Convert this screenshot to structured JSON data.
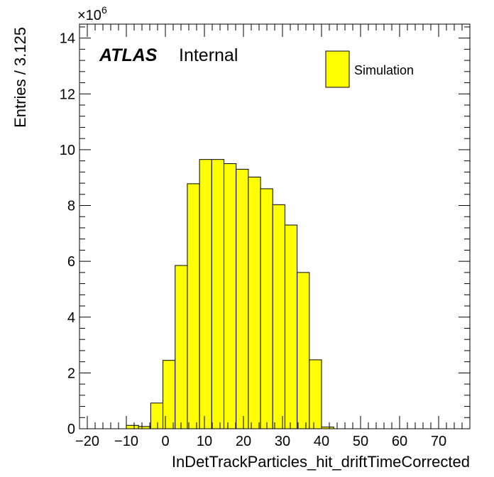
{
  "chart_data": {
    "type": "bar",
    "histogram": true,
    "bin_width": 3.125,
    "bin_edges_start": -10,
    "x": [
      -8.4375,
      -5.3125,
      -2.1875,
      0.9375,
      4.0625,
      7.1875,
      10.3125,
      13.4375,
      16.5625,
      19.6875,
      22.8125,
      25.9375,
      29.0625,
      32.1875,
      35.3125,
      38.4375,
      41.5625,
      44.6875
    ],
    "values": [
      0.12,
      0.08,
      0.92,
      2.45,
      5.85,
      8.78,
      9.65,
      9.65,
      9.5,
      9.3,
      9.02,
      8.6,
      8.03,
      7.3,
      5.6,
      2.47,
      0.06,
      0.0
    ],
    "value_scale_label": "×10",
    "value_scale_exponent": "6",
    "xlabel": "InDetTrackParticles_hit_driftTimeCorrected",
    "ylabel": "Entries / 3.125",
    "xlim": [
      -22,
      78
    ],
    "ylim": [
      0,
      14.5
    ],
    "x_ticks": [
      -20,
      -10,
      0,
      10,
      20,
      30,
      40,
      50,
      60,
      70
    ],
    "x_tick_labels": [
      "−20",
      "−10",
      "0",
      "10",
      "20",
      "30",
      "40",
      "50",
      "60",
      "70"
    ],
    "y_ticks": [
      0,
      2,
      4,
      6,
      8,
      10,
      12,
      14
    ],
    "y_tick_labels": [
      "0",
      "2",
      "4",
      "6",
      "8",
      "10",
      "12",
      "14"
    ],
    "fill_color": "#ffff00",
    "line_color": "#000000",
    "grid": false,
    "legend_position": "top-right",
    "legend": [
      {
        "name": "Simulation",
        "color": "#ffff00"
      }
    ]
  },
  "labels": {
    "atlas": "ATLAS",
    "internal": "Internal"
  }
}
